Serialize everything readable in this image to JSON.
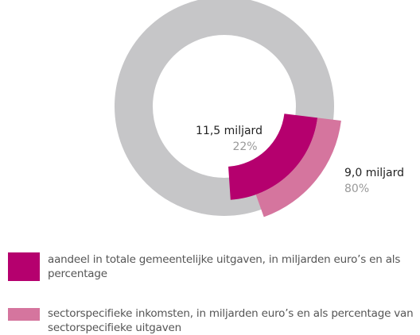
{
  "chart_data": {
    "type": "pie",
    "series": [
      {
        "name": "aandeel in totale gemeentelijke uitgaven, in miljarden euro’s en als percentage",
        "color": "#b5006e",
        "values": [
          22
        ],
        "value_labels": [
          "22%"
        ],
        "amount_label": "11,5 miljard"
      },
      {
        "name": "sectorspecifieke inkomsten, in miljarden euro’s en als percentage van sectorspecifieke uitgaven",
        "color": "#d5759e",
        "values": [
          80
        ],
        "value_labels": [
          "80%"
        ],
        "amount_label": "9,0 miljard"
      }
    ],
    "rest_color": "#c6c6c8"
  }
}
